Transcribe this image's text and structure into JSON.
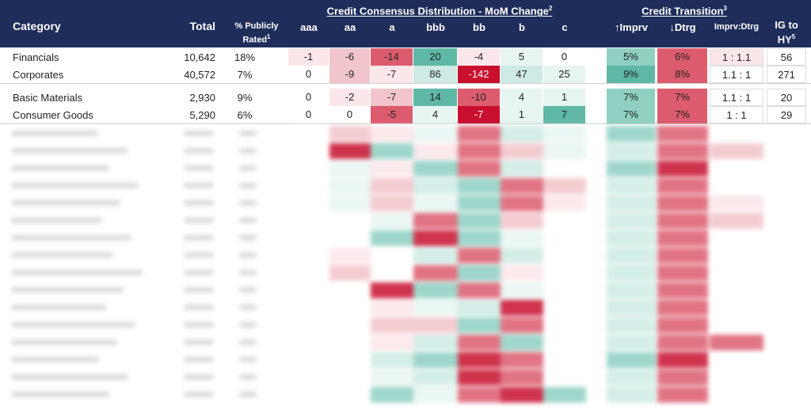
{
  "header": {
    "category": "Category",
    "total": "Total",
    "pct_rated": "% Publicly Rated",
    "pct_rated_sup": "1",
    "group_consensus": "Credit Consensus Distribution - MoM Change",
    "group_consensus_sup": "2",
    "group_transition": "Credit Transition",
    "group_transition_sup": "3",
    "cols": [
      "aaa",
      "aa",
      "a",
      "bbb",
      "bb",
      "b",
      "c"
    ],
    "imprv": "↑Imprv",
    "dtrg": "↓Dtrg",
    "ratio": "Imprv:Dtrg",
    "ig_hy": "IG to HY",
    "ig_hy_sup": "5"
  },
  "rows": [
    {
      "category": "Financials",
      "total": "10,642",
      "pct": "18%",
      "dist": [
        "-1",
        "-6",
        "-14",
        "20",
        "-4",
        "5",
        "0"
      ],
      "imprv": "5%",
      "dtrg": "6%",
      "ratio": "1 : 1.1",
      "ig_hy": "56"
    },
    {
      "category": "Corporates",
      "total": "40,572",
      "pct": "7%",
      "dist": [
        "0",
        "-9",
        "-7",
        "86",
        "-142",
        "47",
        "25"
      ],
      "imprv": "9%",
      "dtrg": "8%",
      "ratio": "1.1 : 1",
      "ig_hy": "271"
    },
    {
      "category": "Basic Materials",
      "total": "2,930",
      "pct": "9%",
      "dist": [
        "0",
        "-2",
        "-7",
        "14",
        "-10",
        "4",
        "1"
      ],
      "imprv": "7%",
      "dtrg": "7%",
      "ratio": "1.1 : 1",
      "ig_hy": "20"
    },
    {
      "category": "Consumer Goods",
      "total": "5,290",
      "pct": "6%",
      "dist": [
        "0",
        "0",
        "-5",
        "4",
        "-7",
        "1",
        "7"
      ],
      "imprv": "7%",
      "dtrg": "7%",
      "ratio": "1 : 1",
      "ig_hy": "29"
    }
  ],
  "colors": {
    "header_bg": "#1f2d5a",
    "red_strong": "#c8102e",
    "red_mid": "#dc5c6e",
    "red_light": "#f2c4cb",
    "red_faint": "#fbe6e9",
    "teal_strong": "#5fb8a6",
    "teal_mid": "#8fd0c2",
    "teal_light": "#cdebe4",
    "teal_faint": "#e7f5f1"
  }
}
